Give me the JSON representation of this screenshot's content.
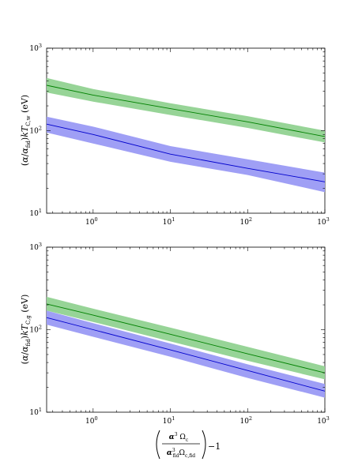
{
  "chart_data": [
    {
      "type": "line",
      "x_scale": "log",
      "y_scale": "log",
      "xlim": [
        0.25,
        1000
      ],
      "ylim": [
        10,
        1000
      ],
      "x_ticks": [
        {
          "base": "10",
          "exp": "0",
          "value": 1
        },
        {
          "base": "10",
          "exp": "1",
          "value": 10
        },
        {
          "base": "10",
          "exp": "2",
          "value": 100
        },
        {
          "base": "10",
          "exp": "3",
          "value": 1000
        }
      ],
      "y_ticks": [
        {
          "base": "10",
          "exp": "1",
          "value": 10
        },
        {
          "base": "10",
          "exp": "2",
          "value": 100
        },
        {
          "base": "10",
          "exp": "3",
          "value": 1000
        }
      ],
      "ylabel": "(α/α_fid) kT_C,w (eV)",
      "grid": false,
      "series": [
        {
          "color": "#008000",
          "band_color": "#97d497",
          "x": [
            0.25,
            1,
            10,
            100,
            1000
          ],
          "y": [
            355,
            270,
            185,
            128,
            85
          ],
          "y_low": [
            290,
            225,
            155,
            108,
            72
          ],
          "y_high": [
            435,
            320,
            215,
            150,
            100
          ]
        },
        {
          "color": "#0000cc",
          "band_color": "#9f9ff5",
          "x": [
            0.25,
            1,
            10,
            100,
            1000
          ],
          "y": [
            120,
            90,
            52,
            35,
            24
          ],
          "y_low": [
            95,
            70,
            42,
            29,
            18
          ],
          "y_high": [
            148,
            112,
            65,
            45,
            31
          ]
        }
      ]
    },
    {
      "type": "line",
      "x_scale": "log",
      "y_scale": "log",
      "xlim": [
        0.25,
        1000
      ],
      "ylim": [
        10,
        1000
      ],
      "x_ticks": [
        {
          "base": "10",
          "exp": "0",
          "value": 1
        },
        {
          "base": "10",
          "exp": "1",
          "value": 10
        },
        {
          "base": "10",
          "exp": "2",
          "value": 100
        },
        {
          "base": "10",
          "exp": "3",
          "value": 1000
        }
      ],
      "y_ticks": [
        {
          "base": "10",
          "exp": "1",
          "value": 10
        },
        {
          "base": "10",
          "exp": "2",
          "value": 100
        },
        {
          "base": "10",
          "exp": "3",
          "value": 1000
        }
      ],
      "ylabel": "(α/α_fid) kT_C,g (eV)",
      "xlabel": "(α³ Ω_c / α³_fid Ω_c,fid) − 1",
      "grid": false,
      "series": [
        {
          "color": "#008000",
          "band_color": "#97d497",
          "x": [
            0.25,
            1,
            10,
            100,
            1000
          ],
          "y": [
            205,
            150,
            88,
            51,
            30
          ],
          "y_low": [
            170,
            124,
            72,
            42,
            25
          ],
          "y_high": [
            250,
            180,
            106,
            62,
            36
          ]
        },
        {
          "color": "#0000cc",
          "band_color": "#9f9ff5",
          "x": [
            0.25,
            1,
            10,
            100,
            1000
          ],
          "y": [
            140,
            100,
            57,
            32,
            18
          ],
          "y_low": [
            115,
            82,
            47,
            26,
            15
          ],
          "y_high": [
            170,
            120,
            68,
            38,
            22
          ]
        }
      ]
    }
  ]
}
